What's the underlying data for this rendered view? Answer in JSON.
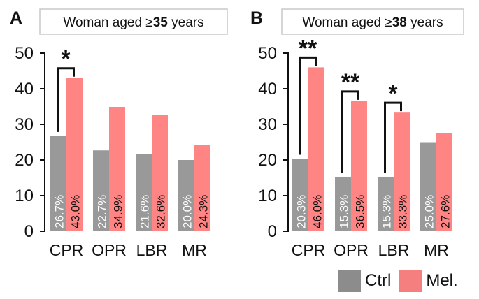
{
  "chart_data": [
    {
      "type": "bar",
      "panel_letter": "A",
      "title_prefix": "Woman aged ≥",
      "title_bold": "35",
      "title_suffix": " years",
      "categories": [
        "CPR",
        "OPR",
        "LBR",
        "MR"
      ],
      "series": [
        {
          "name": "Ctrl",
          "values": [
            26.7,
            22.7,
            21.6,
            20.0
          ]
        },
        {
          "name": "Mel.",
          "values": [
            43.0,
            34.9,
            32.6,
            24.3
          ]
        }
      ],
      "value_labels": [
        [
          "26.7%",
          "22.7%",
          "21.6%",
          "20.0%"
        ],
        [
          "43.0%",
          "34.9%",
          "32.6%",
          "24.3%"
        ]
      ],
      "significance": [
        {
          "category_index": 0,
          "label": "*"
        }
      ],
      "ylim": [
        0,
        50
      ],
      "yticks": [
        "0",
        "10",
        "20",
        "30",
        "40",
        "50"
      ]
    },
    {
      "type": "bar",
      "panel_letter": "B",
      "title_prefix": "Woman aged ≥",
      "title_bold": "38",
      "title_suffix": " years",
      "categories": [
        "CPR",
        "OPR",
        "LBR",
        "MR"
      ],
      "series": [
        {
          "name": "Ctrl",
          "values": [
            20.3,
            15.3,
            15.3,
            25.0
          ]
        },
        {
          "name": "Mel.",
          "values": [
            46.0,
            36.5,
            33.3,
            27.6
          ]
        }
      ],
      "value_labels": [
        [
          "20.3%",
          "15.3%",
          "15.3%",
          "25.0%"
        ],
        [
          "46.0%",
          "36.5%",
          "33.3%",
          "27.6%"
        ]
      ],
      "significance": [
        {
          "category_index": 0,
          "label": "**"
        },
        {
          "category_index": 1,
          "label": "**"
        },
        {
          "category_index": 2,
          "label": "*"
        }
      ],
      "ylim": [
        0,
        50
      ],
      "yticks": [
        "0",
        "10",
        "20",
        "30",
        "40",
        "50"
      ]
    }
  ],
  "legend": {
    "position": "bottom-right",
    "items": [
      {
        "label": "Ctrl",
        "color": "#8c8c8c"
      },
      {
        "label": "Mel.",
        "color": "#f57f7f"
      }
    ]
  },
  "colors": {
    "ctrl": "#999999",
    "mel": "#ff8484",
    "axis": "#111111",
    "title_border": "#c8c8c8"
  }
}
